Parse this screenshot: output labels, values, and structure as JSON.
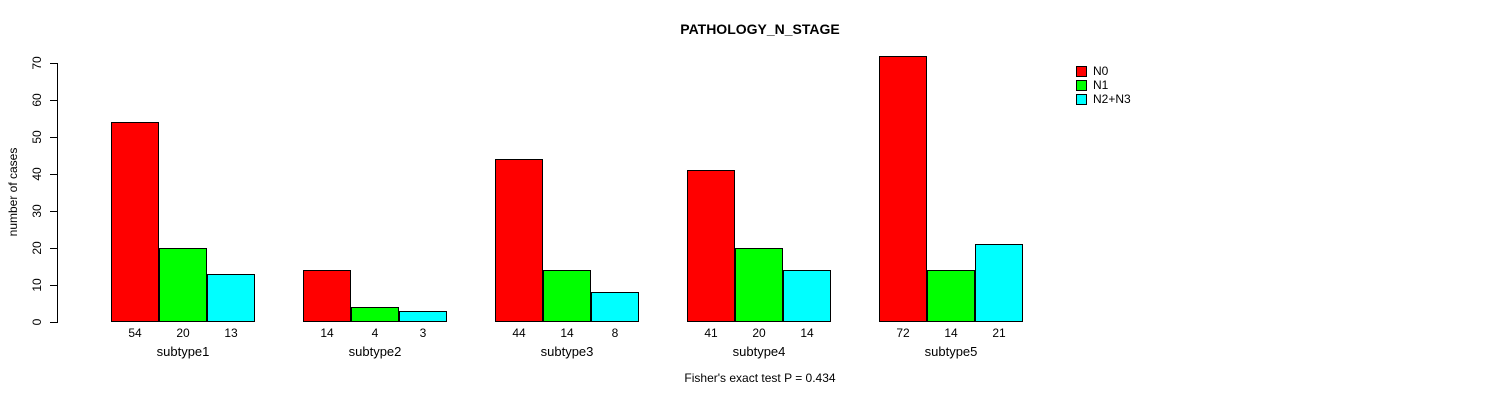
{
  "chart_data": {
    "type": "bar",
    "title": "PATHOLOGY_N_STAGE",
    "xlabel": "",
    "ylabel": "number of cases",
    "annotation": "Fisher's exact test P = 0.434",
    "categories": [
      "subtype1",
      "subtype2",
      "subtype3",
      "subtype4",
      "subtype5"
    ],
    "series": [
      {
        "name": "N0",
        "color": "#ff0000",
        "values": [
          54,
          14,
          44,
          41,
          72
        ]
      },
      {
        "name": "N1",
        "color": "#00ff00",
        "values": [
          20,
          4,
          14,
          20,
          14
        ]
      },
      {
        "name": "N2+N3",
        "color": "#00ffff",
        "values": [
          13,
          3,
          8,
          14,
          21
        ]
      }
    ],
    "bar_value_labels": [
      [
        54,
        20,
        13
      ],
      [
        14,
        4,
        3
      ],
      [
        44,
        14,
        8
      ],
      [
        41,
        20,
        14
      ],
      [
        72,
        14,
        21
      ]
    ],
    "ylim": [
      0,
      70
    ],
    "yticks": [
      0,
      10,
      20,
      30,
      40,
      50,
      60,
      70
    ],
    "grid": false,
    "legend_position": "top-right",
    "bar_border_color": "#000000",
    "background_color": "#ffffff"
  }
}
